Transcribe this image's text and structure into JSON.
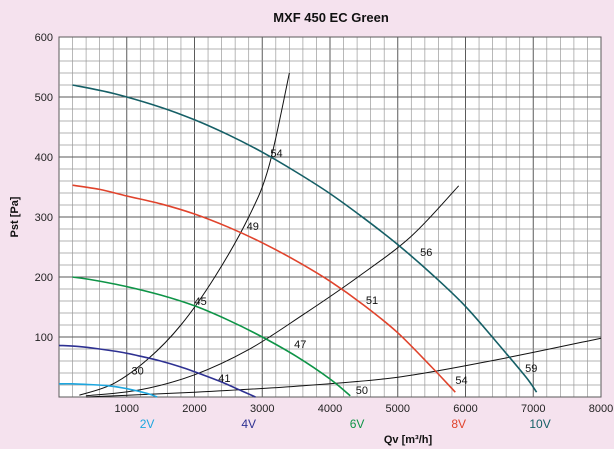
{
  "chart_data": {
    "type": "line",
    "title": "MXF 450 EC Green",
    "xlabel": "Qv [m³/h]",
    "ylabel": "Pst [Pa]",
    "xlim": [
      0,
      8000
    ],
    "ylim": [
      0,
      600
    ],
    "x_ticks": [
      "1000",
      "2000",
      "3000",
      "4000",
      "5000",
      "6000",
      "7000",
      "8000"
    ],
    "y_ticks": [
      "100",
      "200",
      "300",
      "400",
      "500",
      "600"
    ],
    "grid": true,
    "series": [
      {
        "name": "2V",
        "color": "#1ea6de",
        "x": [
          0,
          200,
          400,
          700,
          1000,
          1300,
          1450
        ],
        "y": [
          22,
          22,
          21,
          19,
          14,
          6,
          0
        ]
      },
      {
        "name": "4V",
        "color": "#2e3192",
        "x": [
          0,
          300,
          600,
          900,
          1200,
          1500,
          1800,
          2100,
          2400,
          2700,
          2900
        ],
        "y": [
          86,
          84,
          80,
          75,
          68,
          60,
          50,
          38,
          25,
          10,
          0
        ]
      },
      {
        "name": "6V",
        "color": "#0e9447",
        "x": [
          200,
          500,
          1000,
          1500,
          2000,
          2500,
          3000,
          3500,
          4000,
          4300
        ],
        "y": [
          200,
          195,
          184,
          170,
          152,
          128,
          100,
          68,
          30,
          2
        ]
      },
      {
        "name": "8V",
        "color": "#e0432c",
        "x": [
          200,
          600,
          1000,
          1500,
          2000,
          2500,
          3000,
          3500,
          4000,
          4500,
          5000,
          5500,
          5850
        ],
        "y": [
          353,
          346,
          335,
          322,
          305,
          283,
          257,
          227,
          193,
          153,
          107,
          50,
          8
        ]
      },
      {
        "name": "10V",
        "color": "#155f66",
        "x": [
          200,
          800,
          1500,
          2000,
          2500,
          3000,
          3500,
          4000,
          4500,
          5000,
          5500,
          6000,
          6500,
          6900,
          7050
        ],
        "y": [
          520,
          506,
          483,
          462,
          437,
          408,
          375,
          339,
          298,
          254,
          205,
          151,
          86,
          32,
          8
        ]
      }
    ],
    "system_curves": [
      {
        "color": "#111111",
        "x": [
          300,
          800,
          1300,
          1800,
          2300,
          2800,
          3100,
          3400
        ],
        "y": [
          3,
          22,
          62,
          120,
          200,
          300,
          385,
          540
        ]
      },
      {
        "color": "#111111",
        "x": [
          400,
          1200,
          2000,
          2800,
          3600,
          4400,
          5200,
          5900
        ],
        "y": [
          2,
          12,
          37,
          79,
          137,
          199,
          268,
          352
        ]
      },
      {
        "color": "#111111",
        "x": [
          400,
          2000,
          3500,
          5000,
          6500,
          8000
        ],
        "y": [
          0,
          8,
          18,
          33,
          63,
          98
        ]
      }
    ],
    "annotations": [
      {
        "text": "30",
        "x": 1070,
        "y": 44
      },
      {
        "text": "41",
        "x": 2350,
        "y": 32
      },
      {
        "text": "45",
        "x": 2000,
        "y": 160
      },
      {
        "text": "47",
        "x": 3470,
        "y": 88
      },
      {
        "text": "49",
        "x": 2770,
        "y": 285
      },
      {
        "text": "50",
        "x": 4380,
        "y": 12
      },
      {
        "text": "51",
        "x": 4530,
        "y": 162
      },
      {
        "text": "54",
        "x": 3120,
        "y": 407
      },
      {
        "text": "54",
        "x": 5850,
        "y": 28
      },
      {
        "text": "56",
        "x": 5330,
        "y": 242
      },
      {
        "text": "59",
        "x": 6880,
        "y": 48
      }
    ]
  }
}
